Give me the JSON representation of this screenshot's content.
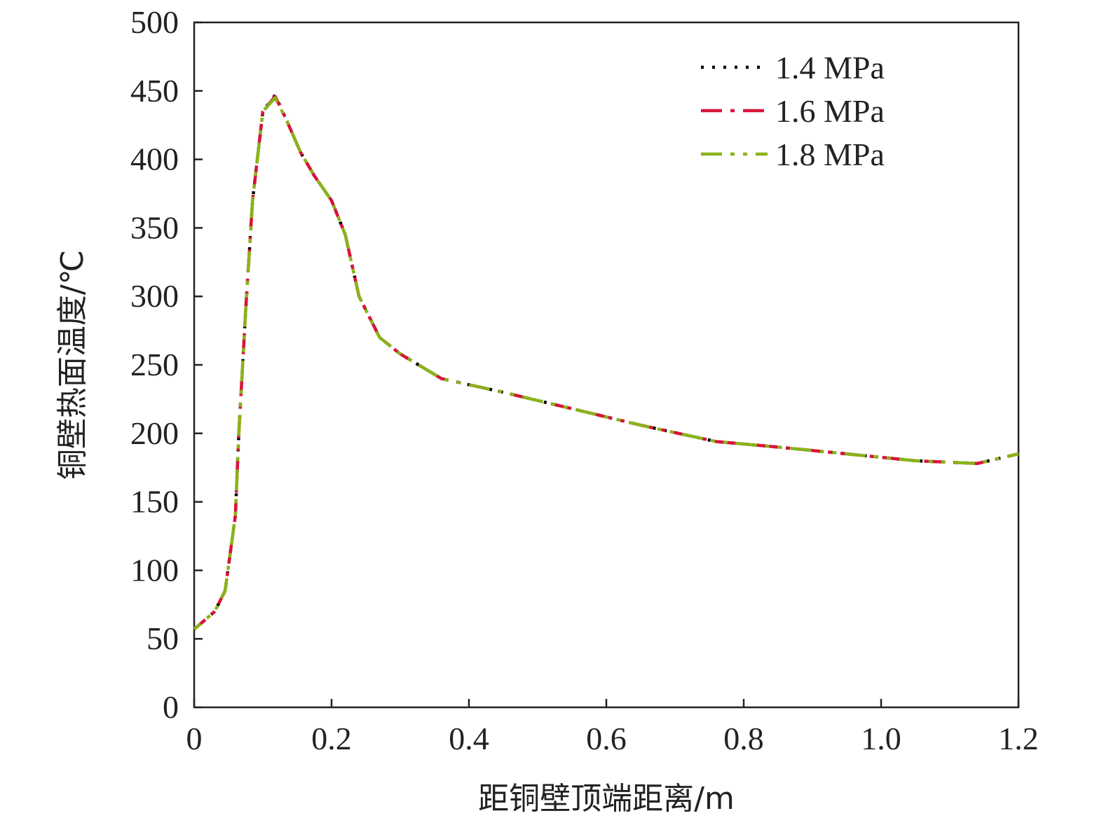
{
  "chart_data": {
    "type": "line",
    "title": "",
    "xlabel": "距铜壁顶端距离/m",
    "ylabel": "铜壁热面温度/℃",
    "xlim": [
      0,
      1.2
    ],
    "ylim": [
      0,
      500
    ],
    "xticks": [
      0,
      0.2,
      0.4,
      0.6,
      0.8,
      1.0,
      1.2
    ],
    "xtick_labels": [
      "0",
      "0.2",
      "0.4",
      "0.6",
      "0.8",
      "1.0",
      "1.2"
    ],
    "yticks": [
      0,
      50,
      100,
      150,
      200,
      250,
      300,
      350,
      400,
      450,
      500
    ],
    "ytick_labels": [
      "0",
      "50",
      "100",
      "150",
      "200",
      "250",
      "300",
      "350",
      "400",
      "450",
      "500"
    ],
    "grid": false,
    "legend_position": "top-right",
    "series": [
      {
        "name": "1.4 MPa",
        "color": "#000000",
        "dash": "dotted",
        "x": [
          0,
          0.03,
          0.045,
          0.06,
          0.065,
          0.075,
          0.085,
          0.1,
          0.118,
          0.135,
          0.155,
          0.175,
          0.2,
          0.22,
          0.24,
          0.27,
          0.3,
          0.36,
          0.45,
          0.55,
          0.65,
          0.76,
          0.85,
          0.95,
          1.05,
          1.14,
          1.2
        ],
        "y": [
          57,
          70,
          85,
          140,
          200,
          290,
          370,
          435,
          447,
          428,
          405,
          388,
          370,
          345,
          300,
          270,
          258,
          240,
          230,
          218,
          206,
          194,
          190,
          185,
          180,
          178,
          185
        ]
      },
      {
        "name": "1.6 MPa",
        "color": "#d8143a",
        "dash": "dash-dot",
        "x": [
          0,
          0.03,
          0.045,
          0.06,
          0.065,
          0.075,
          0.085,
          0.1,
          0.118,
          0.135,
          0.155,
          0.175,
          0.2,
          0.22,
          0.24,
          0.27,
          0.3,
          0.36,
          0.45,
          0.55,
          0.65,
          0.76,
          0.85,
          0.95,
          1.05,
          1.14,
          1.2
        ],
        "y": [
          57,
          70,
          85,
          140,
          200,
          290,
          370,
          435,
          446,
          428,
          405,
          388,
          370,
          345,
          300,
          270,
          258,
          240,
          230,
          218,
          206,
          194,
          190,
          185,
          180,
          178,
          185
        ]
      },
      {
        "name": "1.8 MPa",
        "color": "#8ab31a",
        "dash": "dash-dot-dot",
        "x": [
          0,
          0.03,
          0.045,
          0.06,
          0.065,
          0.075,
          0.085,
          0.1,
          0.118,
          0.135,
          0.155,
          0.175,
          0.2,
          0.22,
          0.24,
          0.27,
          0.3,
          0.36,
          0.45,
          0.55,
          0.65,
          0.76,
          0.85,
          0.95,
          1.05,
          1.14,
          1.2
        ],
        "y": [
          57,
          70,
          85,
          140,
          200,
          290,
          370,
          435,
          445,
          428,
          405,
          388,
          370,
          345,
          300,
          270,
          258,
          240,
          230,
          218,
          206,
          194,
          190,
          185,
          180,
          178,
          185
        ]
      }
    ]
  }
}
